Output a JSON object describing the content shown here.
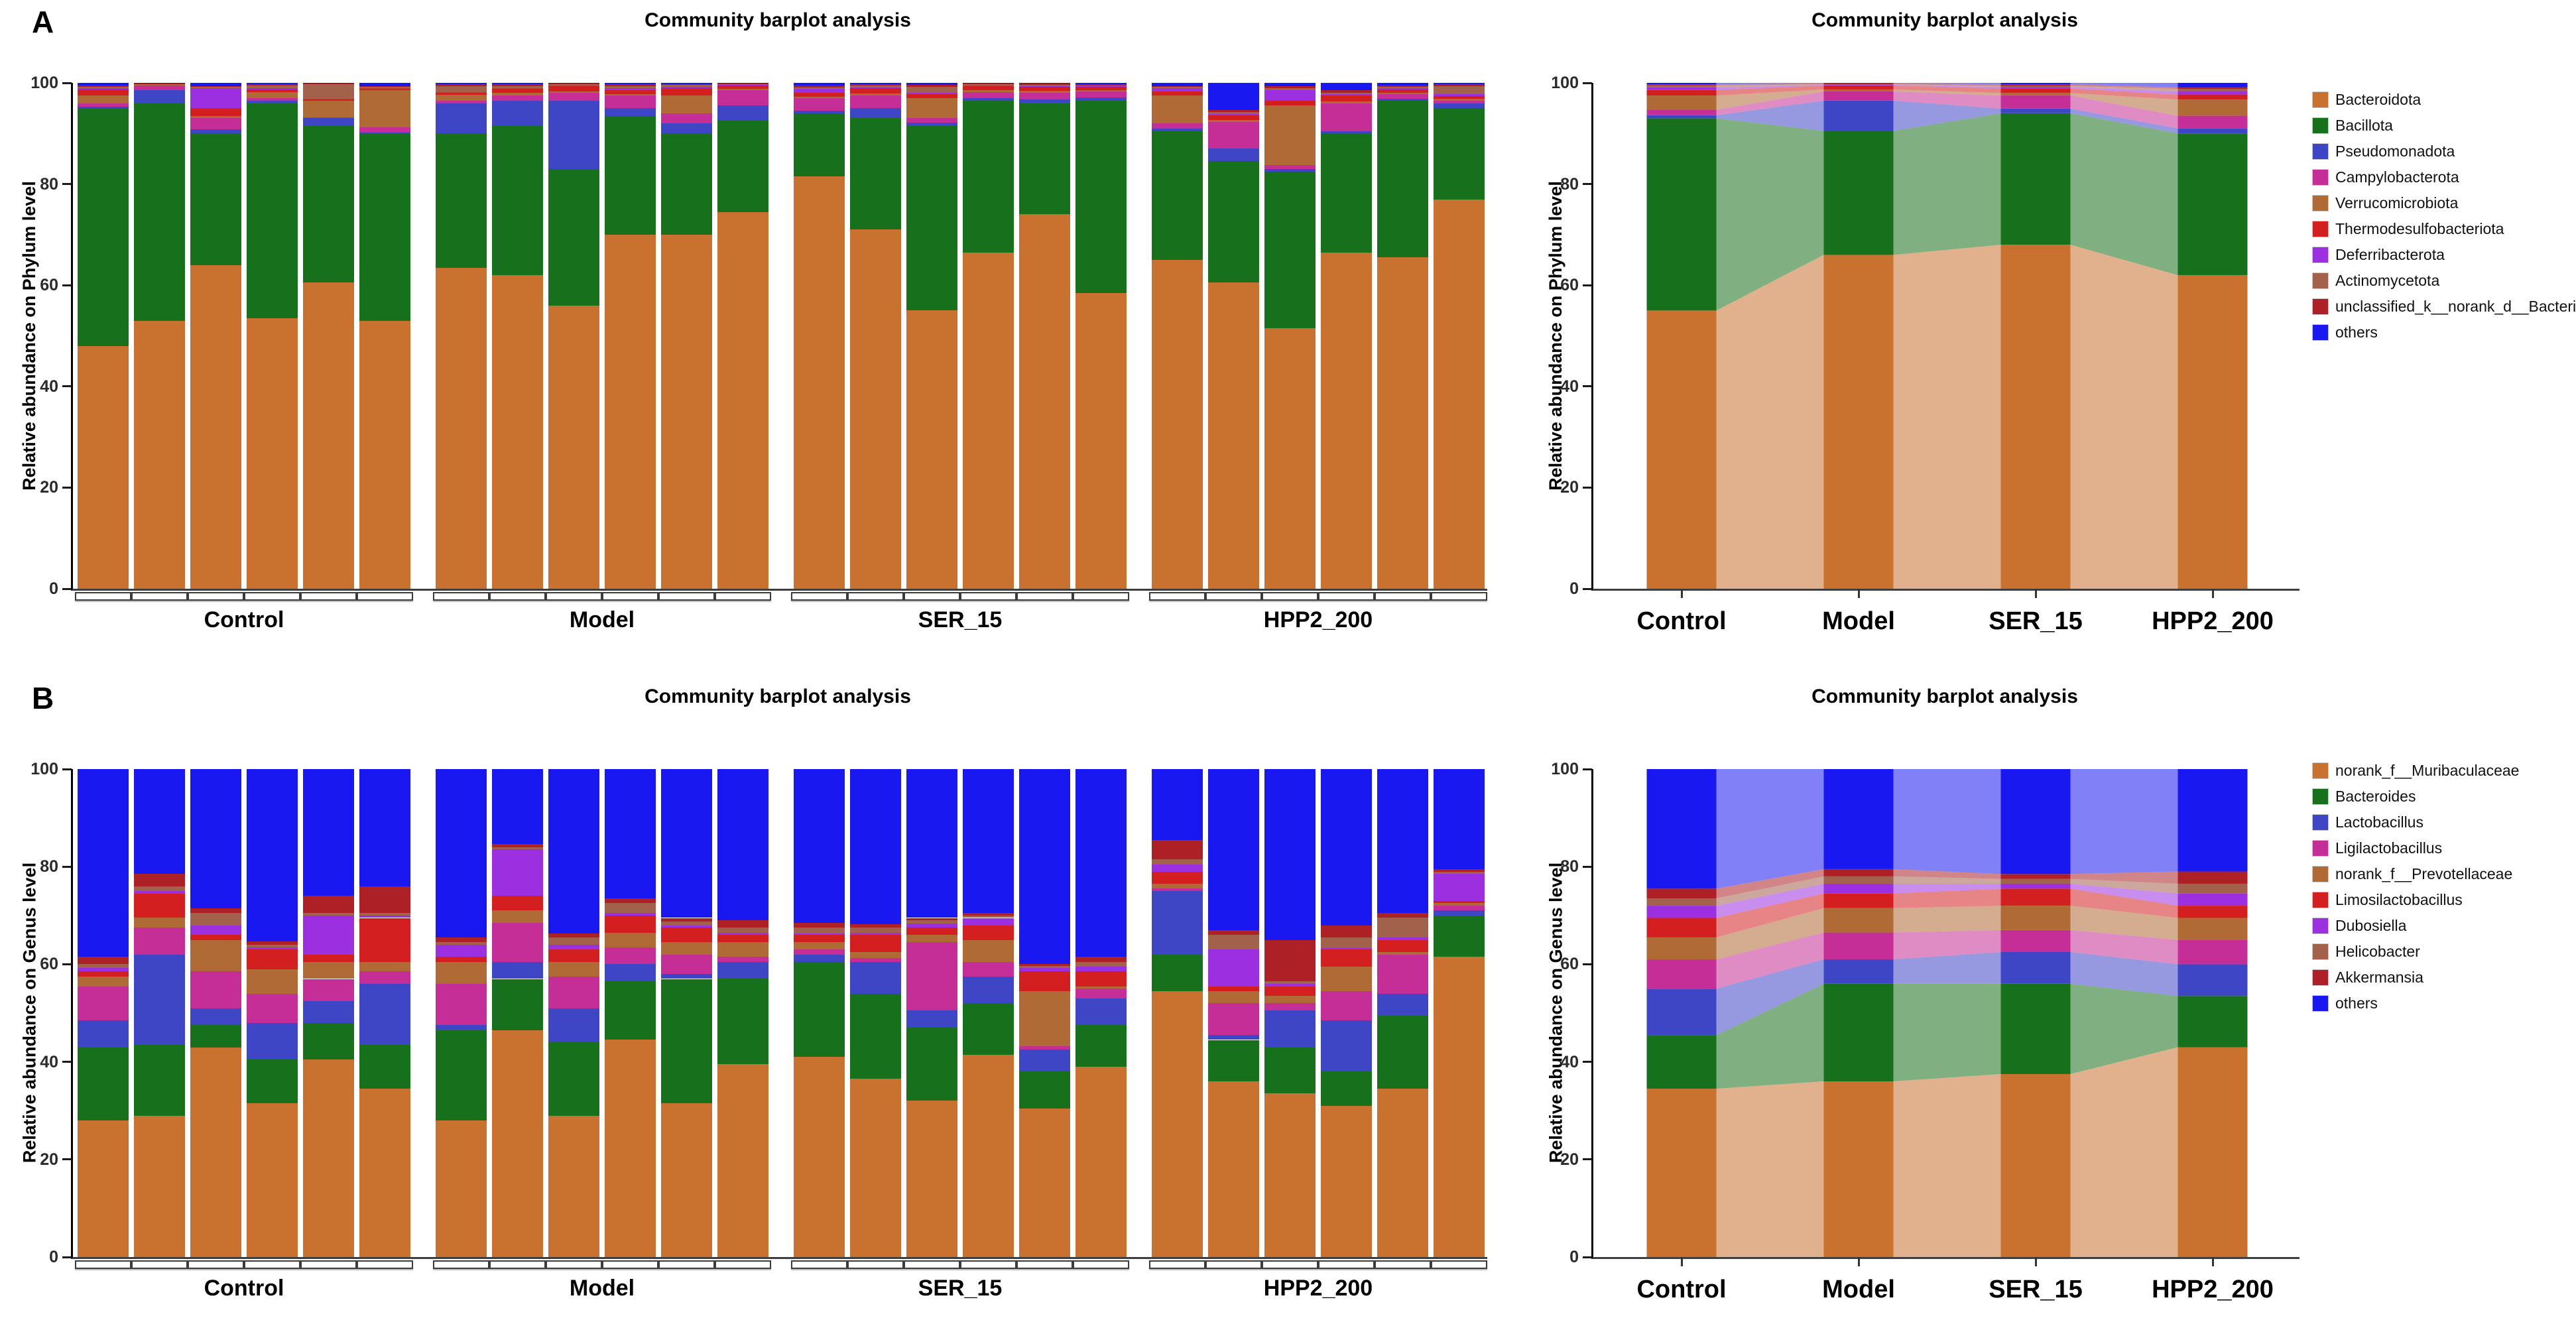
{
  "figure": {
    "panel_a_label": "A",
    "panel_b_label": "B",
    "group_names": [
      "Control",
      "Model",
      "SER_15",
      "HPP2_200"
    ]
  },
  "palette": {
    "c1": "#c9712f",
    "c2": "#17701c",
    "c3": "#3f46c6",
    "c4": "#c42e96",
    "c5": "#b06a35",
    "c6": "#d41f20",
    "c7": "#9c2fe0",
    "c8": "#a2614a",
    "c9": "#ac2026",
    "c10": "#1a18f0"
  },
  "chart_data": [
    {
      "id": "A-left",
      "type": "bar",
      "stacked": true,
      "title": "Community barplot analysis",
      "ylabel": "Relative abundance on Phylum level",
      "ylim": [
        0,
        100
      ],
      "yticks": [
        0,
        20,
        40,
        60,
        80,
        100
      ],
      "groups": [
        "Control",
        "Model",
        "SER_15",
        "HPP2_200"
      ],
      "bars_per_group": 6,
      "series_names": [
        "Bacteroidota",
        "Bacillota",
        "Pseudomonadota",
        "Campylobacterota",
        "Verrucomicrobiota",
        "Thermodesulfobacteriota",
        "Deferribacterota",
        "Actinomycetota",
        "unclassified_k__norank_d__Bacteria",
        "others"
      ],
      "colors": [
        "#c9712f",
        "#17701c",
        "#3f46c6",
        "#c42e96",
        "#b06a35",
        "#d41f20",
        "#9c2fe0",
        "#a2614a",
        "#ac2026",
        "#1a18f0"
      ],
      "values": [
        [
          48,
          47,
          0.3,
          0.7,
          1.5,
          1.2,
          0.2,
          0.3,
          0.3,
          0.5
        ],
        [
          53,
          43,
          2.5,
          1.0,
          0.1,
          0.1,
          0.05,
          0.05,
          0.05,
          0.15
        ],
        [
          64,
          26,
          0.8,
          2.2,
          0.5,
          1.5,
          4.0,
          0.2,
          0.2,
          0.6
        ],
        [
          53.5,
          42.5,
          0.4,
          0.6,
          1.2,
          0.5,
          0.3,
          0.5,
          0.2,
          0.3
        ],
        [
          60.5,
          31,
          1.5,
          0.2,
          3.3,
          0.3,
          0.1,
          2.8,
          0.2,
          0.1
        ],
        [
          53,
          37,
          0.2,
          1.0,
          7.3,
          0.3,
          0.1,
          0.3,
          0.2,
          0.6
        ],
        [
          63.5,
          26.5,
          6.0,
          0.5,
          1.2,
          0.3,
          0.2,
          1.2,
          0.3,
          0.3
        ],
        [
          62,
          29.5,
          5.0,
          1.0,
          0.5,
          0.8,
          0.2,
          0.4,
          0.4,
          0.2
        ],
        [
          56,
          27,
          13.5,
          1.5,
          0.3,
          1.0,
          0.2,
          0.2,
          0.2,
          0.1
        ],
        [
          70,
          23.5,
          1.5,
          2.5,
          0.3,
          0.8,
          0.4,
          0.3,
          0.4,
          0.3
        ],
        [
          70,
          20,
          2.0,
          2.0,
          3.5,
          1.5,
          0.2,
          0.4,
          0.2,
          0.2
        ],
        [
          74.5,
          18,
          3.0,
          3.0,
          0.3,
          0.7,
          0.1,
          0.1,
          0.2,
          0.1
        ],
        [
          81.5,
          12.5,
          0.5,
          2.5,
          0.3,
          0.7,
          0.8,
          0.3,
          0.4,
          0.5
        ],
        [
          71,
          22,
          2.0,
          2.5,
          0.4,
          1.0,
          0.2,
          0.4,
          0.3,
          0.2
        ],
        [
          55,
          36.5,
          0.7,
          0.8,
          4.0,
          0.8,
          0.2,
          1.2,
          0.4,
          0.4
        ],
        [
          66.5,
          30,
          0.5,
          1.2,
          0.3,
          0.8,
          0.2,
          0.2,
          0.2,
          0.1
        ],
        [
          74,
          22,
          0.7,
          1.3,
          0.4,
          0.8,
          0.2,
          0.2,
          0.3,
          0.1
        ],
        [
          58.5,
          38,
          0.6,
          1.2,
          0.3,
          0.6,
          0.1,
          0.2,
          0.3,
          0.2
        ],
        [
          65,
          25.5,
          0.4,
          1.1,
          5.5,
          0.8,
          0.6,
          0.3,
          0.2,
          0.6
        ],
        [
          60.5,
          24,
          2.5,
          5.3,
          0.4,
          0.9,
          0.3,
          0.3,
          0.4,
          5.4
        ],
        [
          51.5,
          31,
          0.5,
          0.8,
          11.7,
          1.0,
          2.0,
          0.5,
          0.3,
          0.7
        ],
        [
          66.5,
          23.5,
          0.4,
          5.6,
          0.3,
          1.2,
          0.3,
          0.3,
          0.4,
          1.5
        ],
        [
          65.5,
          31,
          0.3,
          1.0,
          0.2,
          0.7,
          0.3,
          0.2,
          0.3,
          0.5
        ],
        [
          77,
          18,
          1.0,
          0.5,
          0.3,
          0.6,
          0.4,
          1.6,
          0.3,
          0.3
        ]
      ]
    },
    {
      "id": "A-right",
      "type": "area",
      "title": "Community barplot analysis",
      "ylabel": "Relative abundance on Phylum level",
      "ylim": [
        0,
        100
      ],
      "yticks": [
        0,
        20,
        40,
        60,
        80,
        100
      ],
      "categories": [
        "Control",
        "Model",
        "SER_15",
        "HPP2_200"
      ],
      "series_names": [
        "Bacteroidota",
        "Bacillota",
        "Pseudomonadota",
        "Campylobacterota",
        "Verrucomicrobiota",
        "Thermodesulfobacteriota",
        "Deferribacterota",
        "Actinomycetota",
        "unclassified_k__norank_d__Bacteria",
        "others"
      ],
      "colors": [
        "#c9712f",
        "#17701c",
        "#3f46c6",
        "#c42e96",
        "#b06a35",
        "#d41f20",
        "#9c2fe0",
        "#a2614a",
        "#ac2026",
        "#1a18f0"
      ],
      "values": [
        [
          55,
          38,
          0.6,
          1.1,
          2.8,
          1.1,
          0.5,
          0.4,
          0.2,
          0.3
        ],
        [
          66,
          24.5,
          6.0,
          1.8,
          0.4,
          0.8,
          0.1,
          0.1,
          0.2,
          0.1
        ],
        [
          68,
          26,
          0.9,
          2.6,
          0.5,
          0.9,
          0.3,
          0.2,
          0.3,
          0.3
        ],
        [
          62,
          28,
          1.0,
          2.5,
          3.2,
          1.0,
          0.6,
          0.5,
          0.3,
          0.9
        ]
      ]
    },
    {
      "id": "B-left",
      "type": "bar",
      "stacked": true,
      "title": "Community barplot analysis",
      "ylabel": "Relative abundance on Genus level",
      "ylim": [
        0,
        100
      ],
      "yticks": [
        0,
        20,
        40,
        60,
        80,
        100
      ],
      "groups": [
        "Control",
        "Model",
        "SER_15",
        "HPP2_200"
      ],
      "bars_per_group": 6,
      "series_names": [
        "norank_f__Muribaculaceae",
        "Bacteroides",
        "Lactobacillus",
        "Ligilactobacillus",
        "norank_f__Prevotellaceae",
        "Limosilactobacillus",
        "Dubosiella",
        "Helicobacter",
        "Akkermansia",
        "others"
      ],
      "colors": [
        "#c9712f",
        "#17701c",
        "#3f46c6",
        "#c42e96",
        "#b06a35",
        "#d41f20",
        "#9c2fe0",
        "#a2614a",
        "#ac2026",
        "#1a18f0"
      ],
      "values": [
        [
          28,
          15,
          5.5,
          7,
          2,
          1,
          0.7,
          0.8,
          1.5,
          38.5
        ],
        [
          29,
          14.5,
          18.5,
          5.5,
          2,
          5,
          0.5,
          1,
          2.5,
          21.5
        ],
        [
          43,
          4.5,
          3.5,
          7.5,
          6.5,
          1,
          2,
          2.5,
          1,
          28.5
        ],
        [
          31.5,
          9,
          7.5,
          6,
          5,
          4,
          0.5,
          0.5,
          0.7,
          35.3
        ],
        [
          40.5,
          7.5,
          4.5,
          4.5,
          3.5,
          1.5,
          8,
          0.5,
          3.5,
          26
        ],
        [
          34.5,
          9,
          12.5,
          2.5,
          2,
          9,
          0.5,
          0.5,
          5.5,
          24
        ],
        [
          28,
          18.5,
          1,
          8.5,
          4.5,
          1,
          2.5,
          0.5,
          1,
          34.5
        ],
        [
          46.5,
          10.5,
          3.5,
          8,
          2.5,
          3,
          9.5,
          0.5,
          0.7,
          15.3
        ],
        [
          29,
          15,
          7,
          6.5,
          3,
          2.5,
          1,
          1.5,
          0.8,
          33.7
        ],
        [
          44.5,
          12,
          3.5,
          3.5,
          3,
          3.5,
          0.5,
          2,
          1,
          26.5
        ],
        [
          31.5,
          25.5,
          1,
          4,
          2.5,
          3,
          0.5,
          0.7,
          0.8,
          30.5
        ],
        [
          39.5,
          17.5,
          3.5,
          1,
          3,
          1.5,
          0.5,
          1,
          1.5,
          31
        ],
        [
          41,
          19.5,
          1.5,
          1,
          1.5,
          1.5,
          0.3,
          1.2,
          1,
          31.5
        ],
        [
          36.5,
          17.5,
          6.5,
          0.8,
          1.2,
          3.5,
          0.5,
          1,
          0.7,
          31.8
        ],
        [
          32,
          15,
          3.5,
          14,
          1.5,
          1.5,
          0.8,
          0.7,
          0.5,
          30.5
        ],
        [
          41.5,
          10.5,
          5.5,
          3,
          4.5,
          3,
          1.5,
          0.5,
          0.5,
          29.5
        ],
        [
          30.5,
          7.5,
          4.5,
          0.7,
          11.3,
          4,
          0.7,
          0.5,
          0.3,
          40
        ],
        [
          39,
          8.5,
          5.5,
          2,
          0.5,
          3,
          1,
          1,
          1,
          38.5
        ],
        [
          54.5,
          7.5,
          13,
          0.5,
          1,
          2.5,
          1.5,
          1,
          4,
          14.5
        ],
        [
          36,
          8.5,
          1,
          6.5,
          2.5,
          1,
          7.5,
          3,
          1,
          33
        ],
        [
          33.5,
          9.5,
          7.5,
          1.5,
          1.5,
          2,
          0.5,
          0.5,
          8.5,
          35
        ],
        [
          31,
          7,
          10.5,
          6,
          5,
          3.5,
          0.3,
          2.2,
          2.5,
          32
        ],
        [
          34.5,
          15,
          4.5,
          8,
          0.5,
          2.5,
          0.5,
          4,
          1,
          29.5
        ],
        [
          61.5,
          8.5,
          1,
          1,
          0.5,
          0.5,
          5.5,
          0.5,
          0.5,
          20.5
        ]
      ]
    },
    {
      "id": "B-right",
      "type": "area",
      "title": "Community barplot analysis",
      "ylabel": "Relative abundance on Genus level",
      "ylim": [
        0,
        100
      ],
      "yticks": [
        0,
        20,
        40,
        60,
        80,
        100
      ],
      "categories": [
        "Control",
        "Model",
        "SER_15",
        "HPP2_200"
      ],
      "series_names": [
        "norank_f__Muribaculaceae",
        "Bacteroides",
        "Lactobacillus",
        "Ligilactobacillus",
        "norank_f__Prevotellaceae",
        "Limosilactobacillus",
        "Dubosiella",
        "Helicobacter",
        "Akkermansia",
        "others"
      ],
      "colors": [
        "#c9712f",
        "#17701c",
        "#3f46c6",
        "#c42e96",
        "#b06a35",
        "#d41f20",
        "#9c2fe0",
        "#a2614a",
        "#ac2026",
        "#1a18f0"
      ],
      "values": [
        [
          34.5,
          11,
          9.5,
          6,
          4.5,
          4,
          2.5,
          1.5,
          2,
          24.5
        ],
        [
          36,
          20,
          5,
          5.5,
          5,
          3,
          2,
          1.5,
          1.5,
          20.5
        ],
        [
          37.5,
          18.5,
          6.5,
          4.5,
          5,
          3.5,
          1,
          1,
          1,
          21.5
        ],
        [
          43,
          10.5,
          6.5,
          5,
          4.5,
          2.5,
          2.5,
          2,
          2.5,
          21
        ]
      ]
    }
  ]
}
